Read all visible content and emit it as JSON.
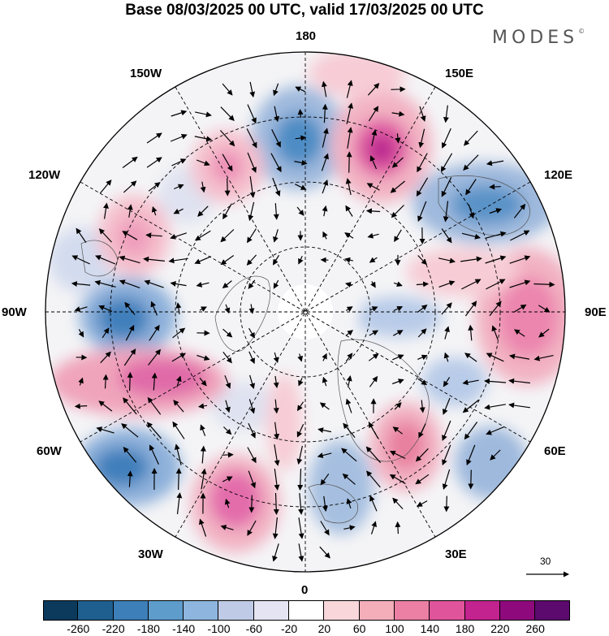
{
  "title": "Base 08/03/2025 00 UTC, valid 17/03/2025 00 UTC",
  "brand": "MODES",
  "brand_mark": "©",
  "longitude_labels": [
    "180",
    "150E",
    "120E",
    "90E",
    "60E",
    "30E",
    "0",
    "30W",
    "60W",
    "90W",
    "120W",
    "150W"
  ],
  "vector_reference": "30",
  "colorbar": {
    "colors": [
      "#0b3a5c",
      "#1f5f8f",
      "#3d7fb8",
      "#5e9ccc",
      "#8db5de",
      "#bfcbe6",
      "#e4e4f2",
      "#ffffff",
      "#f8d6da",
      "#f3aeba",
      "#eb7fa4",
      "#e0549b",
      "#c2238e",
      "#8e0a7c",
      "#5c0a6e"
    ],
    "ticks": [
      "-260",
      "-220",
      "-180",
      "-140",
      "-100",
      "-60",
      "-20",
      "20",
      "60",
      "100",
      "140",
      "180",
      "220",
      "260"
    ]
  }
}
